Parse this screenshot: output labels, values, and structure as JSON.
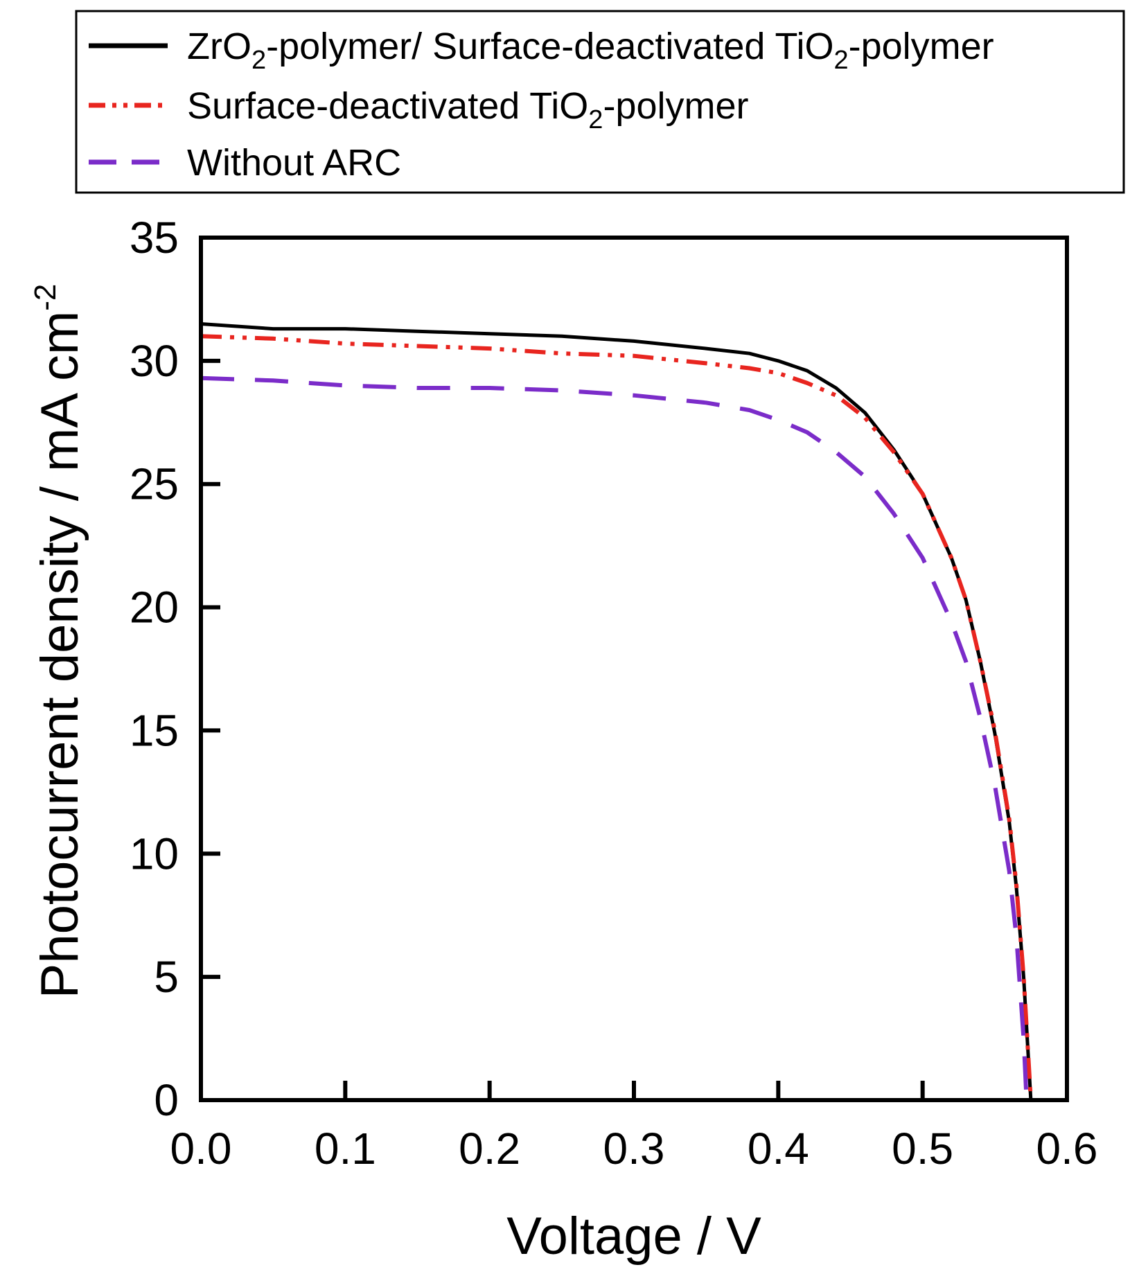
{
  "chart_data": {
    "type": "line",
    "xlabel": "Voltage / V",
    "ylabel": "Photocurrent density / mA cm",
    "ylabel_superscript": "-2",
    "xlim": [
      0.0,
      0.6
    ],
    "ylim": [
      0,
      35
    ],
    "xticks": [
      "0.0",
      "0.1",
      "0.2",
      "0.3",
      "0.4",
      "0.5",
      "0.6"
    ],
    "yticks": [
      "0",
      "5",
      "10",
      "15",
      "20",
      "25",
      "30",
      "35"
    ],
    "legend_position": "top",
    "series": [
      {
        "name": "ZrO2-polymer/ Surface-deactivated TiO2-polymer",
        "label_parts": [
          [
            "ZrO",
            false
          ],
          [
            "2",
            true
          ],
          [
            "-polymer/ Surface-deactivated TiO",
            false
          ],
          [
            "2",
            true
          ],
          [
            "-polymer",
            false
          ]
        ],
        "color": "#000000",
        "style": "solid",
        "x": [
          0.0,
          0.05,
          0.1,
          0.15,
          0.2,
          0.25,
          0.3,
          0.35,
          0.38,
          0.4,
          0.42,
          0.44,
          0.46,
          0.48,
          0.5,
          0.52,
          0.53,
          0.54,
          0.55,
          0.56,
          0.565,
          0.57,
          0.575
        ],
        "y": [
          31.5,
          31.3,
          31.3,
          31.2,
          31.1,
          31.0,
          30.8,
          30.5,
          30.3,
          30.0,
          29.6,
          28.9,
          27.9,
          26.4,
          24.6,
          22.0,
          20.3,
          17.8,
          14.9,
          11.3,
          8.6,
          5.0,
          0.0
        ]
      },
      {
        "name": "Surface-deactivated TiO2-polymer",
        "label_parts": [
          [
            "Surface-deactivated TiO",
            false
          ],
          [
            "2",
            true
          ],
          [
            "-polymer",
            false
          ]
        ],
        "color": "#e8251f",
        "style": "dash-dot-dot",
        "x": [
          0.0,
          0.05,
          0.1,
          0.15,
          0.2,
          0.25,
          0.3,
          0.35,
          0.38,
          0.4,
          0.42,
          0.44,
          0.46,
          0.48,
          0.5,
          0.52,
          0.53,
          0.54,
          0.55,
          0.56,
          0.565,
          0.57,
          0.575
        ],
        "y": [
          31.0,
          30.9,
          30.7,
          30.6,
          30.5,
          30.3,
          30.2,
          29.9,
          29.7,
          29.5,
          29.1,
          28.6,
          27.7,
          26.3,
          24.6,
          22.0,
          20.3,
          17.8,
          15.0,
          11.4,
          8.7,
          5.0,
          0.0
        ]
      },
      {
        "name": "Without ARC",
        "label_parts": [
          [
            "Without ARC",
            false
          ]
        ],
        "color": "#7b2cc9",
        "style": "dashed",
        "x": [
          0.0,
          0.05,
          0.1,
          0.15,
          0.2,
          0.25,
          0.3,
          0.35,
          0.38,
          0.4,
          0.42,
          0.44,
          0.46,
          0.48,
          0.5,
          0.52,
          0.53,
          0.54,
          0.55,
          0.56,
          0.565,
          0.57,
          0.572
        ],
        "y": [
          29.3,
          29.2,
          29.0,
          28.9,
          28.9,
          28.8,
          28.6,
          28.3,
          28.0,
          27.6,
          27.1,
          26.3,
          25.3,
          23.8,
          22.0,
          19.4,
          17.8,
          15.5,
          12.8,
          9.3,
          6.6,
          2.5,
          0.0
        ]
      }
    ]
  }
}
